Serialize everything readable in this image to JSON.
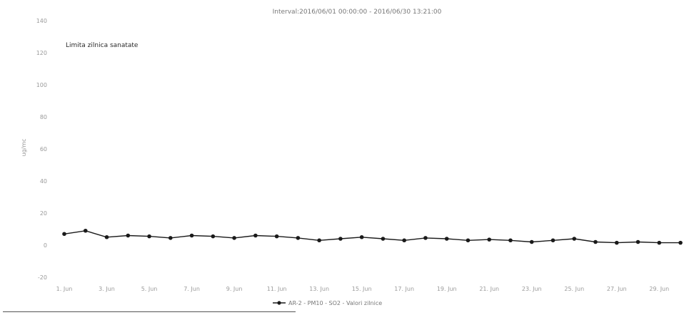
{
  "chart_data": {
    "type": "line",
    "title": "Interval:2016/06/01 00:00:00 - 2016/06/30 13:21:00",
    "annotation": "Limita zilnica sanatate",
    "ylabel": "ug/mc",
    "ylim": [
      -20,
      140
    ],
    "yticks": [
      -20,
      0,
      20,
      40,
      60,
      80,
      100,
      120,
      140
    ],
    "xlim": [
      1,
      30.3
    ],
    "xticks": [
      {
        "pos": 1,
        "label": "1. Jun"
      },
      {
        "pos": 3,
        "label": "3. Jun"
      },
      {
        "pos": 5,
        "label": "5. Jun"
      },
      {
        "pos": 7,
        "label": "7. Jun"
      },
      {
        "pos": 9,
        "label": "9. Jun"
      },
      {
        "pos": 11,
        "label": "11. Jun"
      },
      {
        "pos": 13,
        "label": "13. Jun"
      },
      {
        "pos": 15,
        "label": "15. Jun"
      },
      {
        "pos": 17,
        "label": "17. Jun"
      },
      {
        "pos": 19,
        "label": "19. Jun"
      },
      {
        "pos": 21,
        "label": "21. Jun"
      },
      {
        "pos": 23,
        "label": "23. Jun"
      },
      {
        "pos": 25,
        "label": "25. Jun"
      },
      {
        "pos": 27,
        "label": "27. Jun"
      },
      {
        "pos": 29,
        "label": "29. Jun"
      }
    ],
    "legend_position": "bottom-center",
    "grid": false,
    "series": [
      {
        "name": "AR-2 - PM10 - SO2 - Valori zilnice",
        "color": "#1a1a1a",
        "x": [
          1,
          2,
          3,
          4,
          5,
          6,
          7,
          8,
          9,
          10,
          11,
          12,
          13,
          14,
          15,
          16,
          17,
          18,
          19,
          20,
          21,
          22,
          23,
          24,
          25,
          26,
          27,
          28,
          29,
          30
        ],
        "values": [
          7,
          9,
          5,
          6,
          5.5,
          4.5,
          6,
          5.5,
          4.5,
          6,
          5.5,
          4.5,
          3,
          4,
          5,
          4,
          3,
          4.5,
          4,
          3,
          3.5,
          3,
          2,
          3,
          4,
          2,
          1.5,
          2,
          1.5,
          1.5
        ]
      }
    ]
  }
}
